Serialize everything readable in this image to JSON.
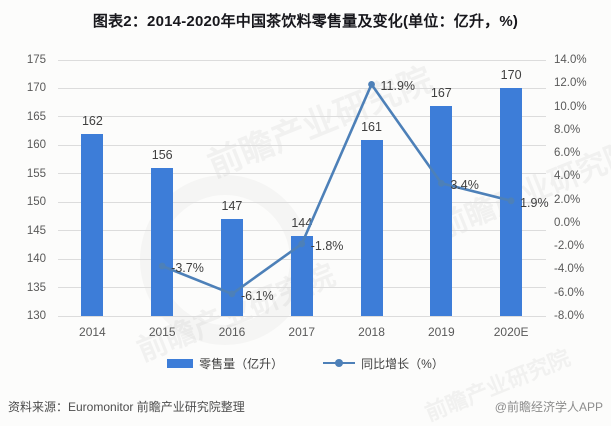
{
  "title": "图表2：2014-2020年中国茶饮料零售量及变化(单位：亿升，%)",
  "chart_data": {
    "type": "bar",
    "subtype": "bar-line-combo",
    "title": "图表2：2014-2020年中国茶饮料零售量及变化(单位：亿升，%)",
    "categories": [
      "2014",
      "2015",
      "2016",
      "2017",
      "2018",
      "2019",
      "2020E"
    ],
    "series": [
      {
        "name": "零售量（亿升）",
        "type": "bar",
        "axis": "left",
        "values": [
          162,
          156,
          147,
          144,
          161,
          167,
          170
        ],
        "labels": [
          "162",
          "156",
          "147",
          "144",
          "161",
          "167",
          "170"
        ]
      },
      {
        "name": "同比增长（%）",
        "type": "line",
        "axis": "right",
        "values": [
          null,
          -3.7,
          -6.1,
          -1.8,
          11.9,
          3.4,
          1.9
        ],
        "labels": [
          "",
          "-3.7%",
          "-6.1%",
          "-1.8%",
          "11.9%",
          "3.4%",
          "1.9%"
        ]
      }
    ],
    "left_axis": {
      "min": 130,
      "max": 175,
      "step": 5,
      "ticks": [
        "175",
        "170",
        "165",
        "160",
        "155",
        "150",
        "145",
        "140",
        "135",
        "130"
      ]
    },
    "right_axis": {
      "min": -8,
      "max": 14,
      "step": 2,
      "ticks": [
        "14.0%",
        "12.0%",
        "10.0%",
        "8.0%",
        "6.0%",
        "4.0%",
        "2.0%",
        "0.0%",
        "-2.0%",
        "-4.0%",
        "-6.0%",
        "-8.0%"
      ]
    },
    "grid": true,
    "legend_position": "bottom"
  },
  "legend": [
    {
      "label": "零售量（亿升）"
    },
    {
      "label": "同比增长（%）"
    }
  ],
  "footer": {
    "source": "资料来源：Euromonitor 前瞻产业研究院整理",
    "credit": "@前瞻经济学人APP"
  },
  "watermark": "前瞻产业研究院",
  "colors": {
    "bar": "#3d7dd8",
    "line": "#4d80b8",
    "grid": "#dcdcdc",
    "axis_text": "#595959",
    "label_text": "#3f3f3f",
    "title_text": "#17171c",
    "background": "#fcfcfb",
    "source_text": "#4d4d4d",
    "credit_text": "#8c8c8c"
  }
}
